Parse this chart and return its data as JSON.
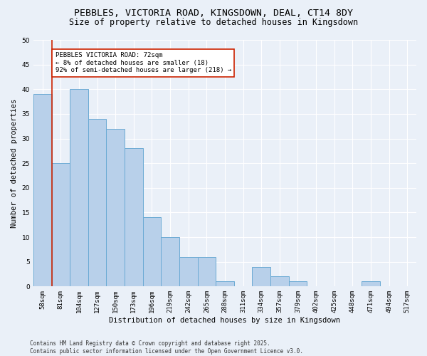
{
  "title_line1": "PEBBLES, VICTORIA ROAD, KINGSDOWN, DEAL, CT14 8DY",
  "title_line2": "Size of property relative to detached houses in Kingsdown",
  "xlabel": "Distribution of detached houses by size in Kingsdown",
  "ylabel": "Number of detached properties",
  "categories": [
    "58sqm",
    "81sqm",
    "104sqm",
    "127sqm",
    "150sqm",
    "173sqm",
    "196sqm",
    "219sqm",
    "242sqm",
    "265sqm",
    "288sqm",
    "311sqm",
    "334sqm",
    "357sqm",
    "379sqm",
    "402sqm",
    "425sqm",
    "448sqm",
    "471sqm",
    "494sqm",
    "517sqm"
  ],
  "values": [
    39,
    25,
    40,
    34,
    32,
    28,
    14,
    10,
    6,
    6,
    1,
    0,
    4,
    2,
    1,
    0,
    0,
    0,
    1,
    0,
    0
  ],
  "bar_color": "#b8d0ea",
  "bar_edge_color": "#6aaad4",
  "background_color": "#eaf0f8",
  "grid_color": "#ffffff",
  "vline_color": "#cc2200",
  "annotation_text": "PEBBLES VICTORIA ROAD: 72sqm\n← 8% of detached houses are smaller (18)\n92% of semi-detached houses are larger (218) →",
  "annotation_box_color": "#ffffff",
  "annotation_box_edge": "#cc2200",
  "ylim": [
    0,
    50
  ],
  "yticks": [
    0,
    5,
    10,
    15,
    20,
    25,
    30,
    35,
    40,
    45,
    50
  ],
  "footer_text": "Contains HM Land Registry data © Crown copyright and database right 2025.\nContains public sector information licensed under the Open Government Licence v3.0.",
  "title_fontsize": 9.5,
  "subtitle_fontsize": 8.5,
  "axis_label_fontsize": 7.5,
  "tick_fontsize": 6.5,
  "annotation_fontsize": 6.5,
  "footer_fontsize": 5.5
}
